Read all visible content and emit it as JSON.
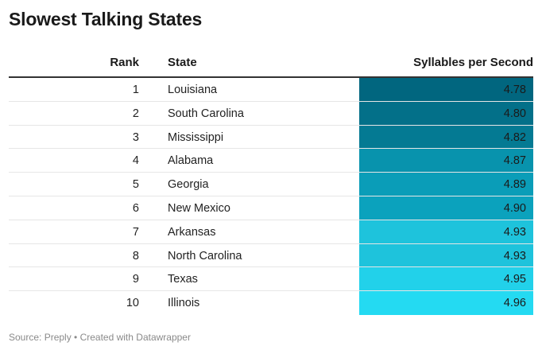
{
  "title": "Slowest Talking States",
  "headers": {
    "rank": "Rank",
    "state": "State",
    "value": "Syllables per Second"
  },
  "chart_data": {
    "type": "table",
    "title": "Slowest Talking States",
    "columns": [
      "Rank",
      "State",
      "Syllables per Second"
    ],
    "rows": [
      {
        "rank": "1",
        "state": "Louisiana",
        "value": "4.78",
        "color": "#01667f"
      },
      {
        "rank": "2",
        "state": "South Carolina",
        "value": "4.80",
        "color": "#037089"
      },
      {
        "rank": "3",
        "state": "Mississippi",
        "value": "4.82",
        "color": "#047a93"
      },
      {
        "rank": "4",
        "state": "Alabama",
        "value": "4.87",
        "color": "#0893ad"
      },
      {
        "rank": "5",
        "state": "Georgia",
        "value": "4.89",
        "color": "#0a9db8"
      },
      {
        "rank": "6",
        "state": "New Mexico",
        "value": "4.90",
        "color": "#0ba2bd"
      },
      {
        "rank": "7",
        "state": "Arkansas",
        "value": "4.93",
        "color": "#1ec3dc"
      },
      {
        "rank": "8",
        "state": "North Carolina",
        "value": "4.93",
        "color": "#1ec3dc"
      },
      {
        "rank": "9",
        "state": "Texas",
        "value": "4.95",
        "color": "#22d1ea"
      },
      {
        "rank": "10",
        "state": "Illinois",
        "value": "4.96",
        "color": "#24daf2"
      }
    ]
  },
  "source": "Source: Preply • Created with Datawrapper"
}
